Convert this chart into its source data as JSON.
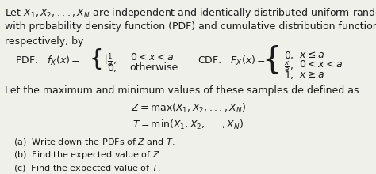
{
  "bg_color": "#f0f0eb",
  "text_color": "#1a1a1a",
  "font_size_body": 9.0,
  "font_size_small": 8.0,
  "intro_line1": "Let $X_1, X_2, ..., X_N$ are independent and identically distributed uniform random variables, each",
  "intro_line2": "with probability density function (PDF) and cumulative distribution function (CDF) given,",
  "intro_line3": "respectively, by",
  "middle_text": "Let the maximum and minimum values of these samples de defined as",
  "eq_Z": "$Z = \\mathrm{max}(X_1, X_2, ..., X_N)$",
  "eq_T": "$T = \\mathrm{min}(X_1, X_2, ..., X_N)$",
  "part_a": "(a)  Write down the PDFs of $Z$ and $T$.",
  "part_b": "(b)  Find the expected value of $Z$.",
  "part_c": "(c)  Find the expected value of $T$."
}
